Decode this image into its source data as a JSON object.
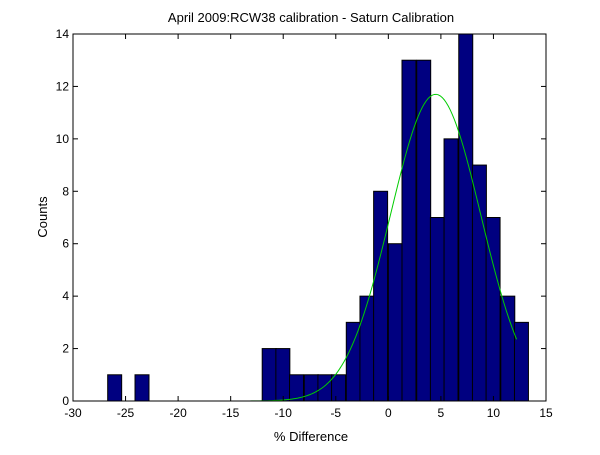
{
  "chart_data": {
    "type": "bar",
    "title": "April 2009:RCW38 calibration - Saturn Calibration",
    "xlabel": "% Difference",
    "ylabel": "Counts",
    "xlim": [
      -30,
      15
    ],
    "ylim": [
      0,
      14
    ],
    "xticks": [
      -30,
      -25,
      -20,
      -15,
      -10,
      -5,
      0,
      5,
      10,
      15
    ],
    "yticks": [
      0,
      2,
      4,
      6,
      8,
      10,
      12,
      14
    ],
    "grid": false,
    "bin_width": 1.33,
    "bar_color": "#000080",
    "bins": [
      {
        "x_start": -26.7,
        "value": 1
      },
      {
        "x_start": -24.1,
        "value": 1
      },
      {
        "x_start": -12.0,
        "value": 2
      },
      {
        "x_start": -10.7,
        "value": 2
      },
      {
        "x_start": -9.4,
        "value": 1
      },
      {
        "x_start": -8.0,
        "value": 1
      },
      {
        "x_start": -6.7,
        "value": 1
      },
      {
        "x_start": -5.4,
        "value": 1
      },
      {
        "x_start": -4.0,
        "value": 3
      },
      {
        "x_start": -2.7,
        "value": 4
      },
      {
        "x_start": -1.4,
        "value": 8
      },
      {
        "x_start": 0.0,
        "value": 6
      },
      {
        "x_start": 1.3,
        "value": 13
      },
      {
        "x_start": 2.7,
        "value": 13
      },
      {
        "x_start": 4.0,
        "value": 7
      },
      {
        "x_start": 5.3,
        "value": 10
      },
      {
        "x_start": 6.7,
        "value": 14
      },
      {
        "x_start": 8.0,
        "value": 9
      },
      {
        "x_start": 9.3,
        "value": 7
      },
      {
        "x_start": 10.7,
        "value": 4
      },
      {
        "x_start": 12.0,
        "value": 3
      }
    ],
    "fit_curve": {
      "type": "gaussian",
      "color": "#00cc00",
      "amplitude": 11.7,
      "mean": 4.5,
      "sigma": 4.3,
      "x_range": [
        -26.0,
        12.2
      ]
    }
  }
}
